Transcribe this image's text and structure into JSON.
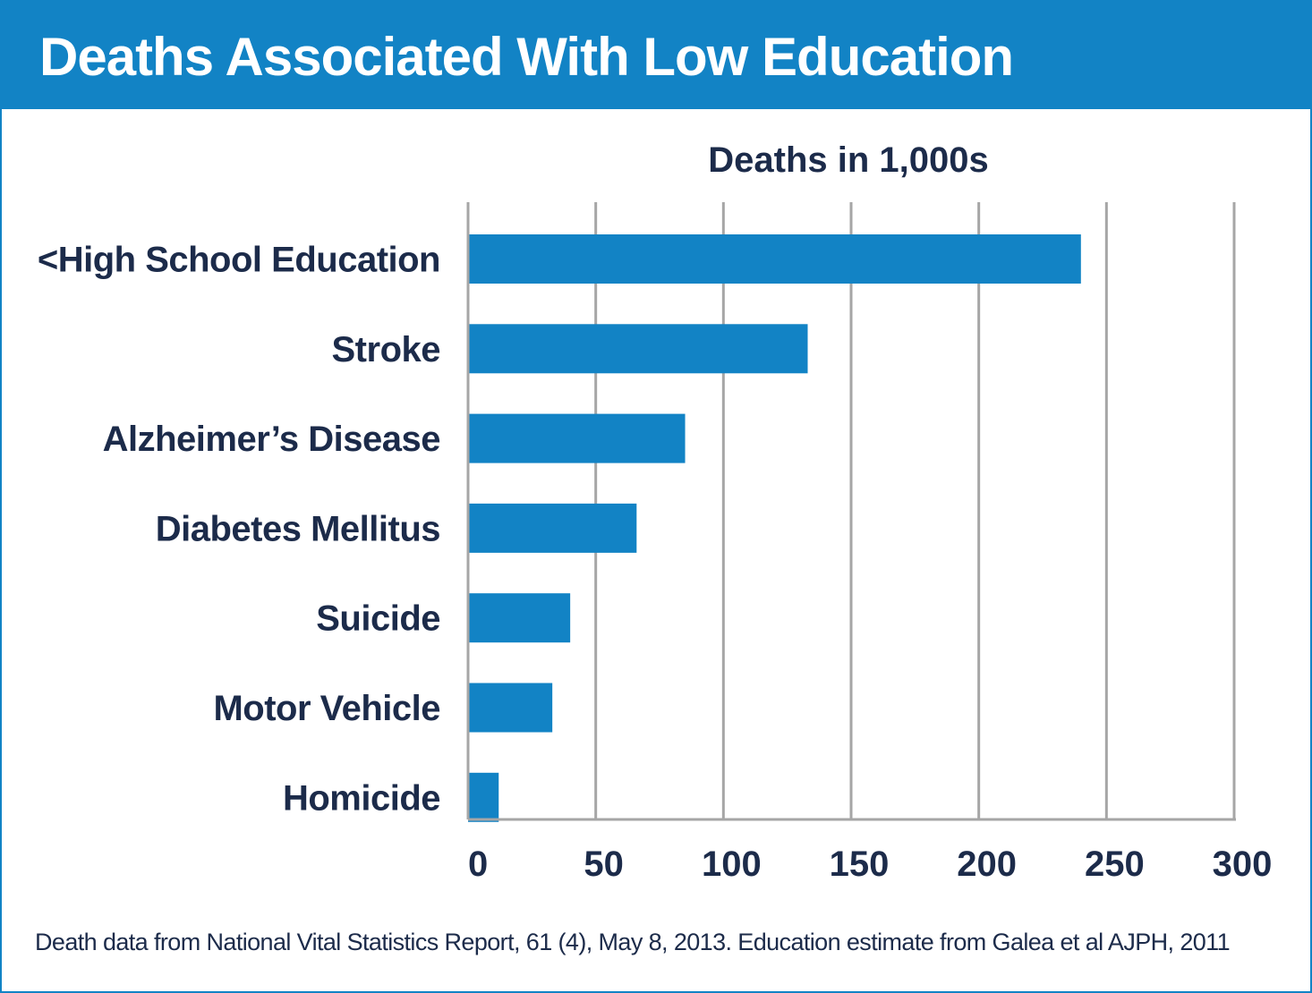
{
  "header": {
    "title": "Deaths Associated With Low Education"
  },
  "colors": {
    "accent": "#1283c5",
    "text": "#1c2b4a",
    "grid": "#a6a6a6"
  },
  "chart_data": {
    "type": "bar",
    "orientation": "horizontal",
    "title": "Deaths in 1,000s",
    "xlabel": "",
    "ylabel": "",
    "categories": [
      "<High School Education",
      "Stroke",
      "Alzheimer’s Disease",
      "Diabetes Mellitus",
      "Suicide",
      "Motor Vehicle",
      "Homicide"
    ],
    "values": [
      240,
      133,
      85,
      66,
      40,
      33,
      12
    ],
    "xlim": [
      0,
      300
    ],
    "xticks": [
      "0",
      "50",
      "100",
      "150",
      "200",
      "250",
      "300"
    ],
    "grid": true,
    "legend": "none"
  },
  "footer": {
    "source": "Death data from National Vital Statistics Report, 61 (4), May 8, 2013. Education estimate from Galea et al  AJPH, 2011"
  }
}
